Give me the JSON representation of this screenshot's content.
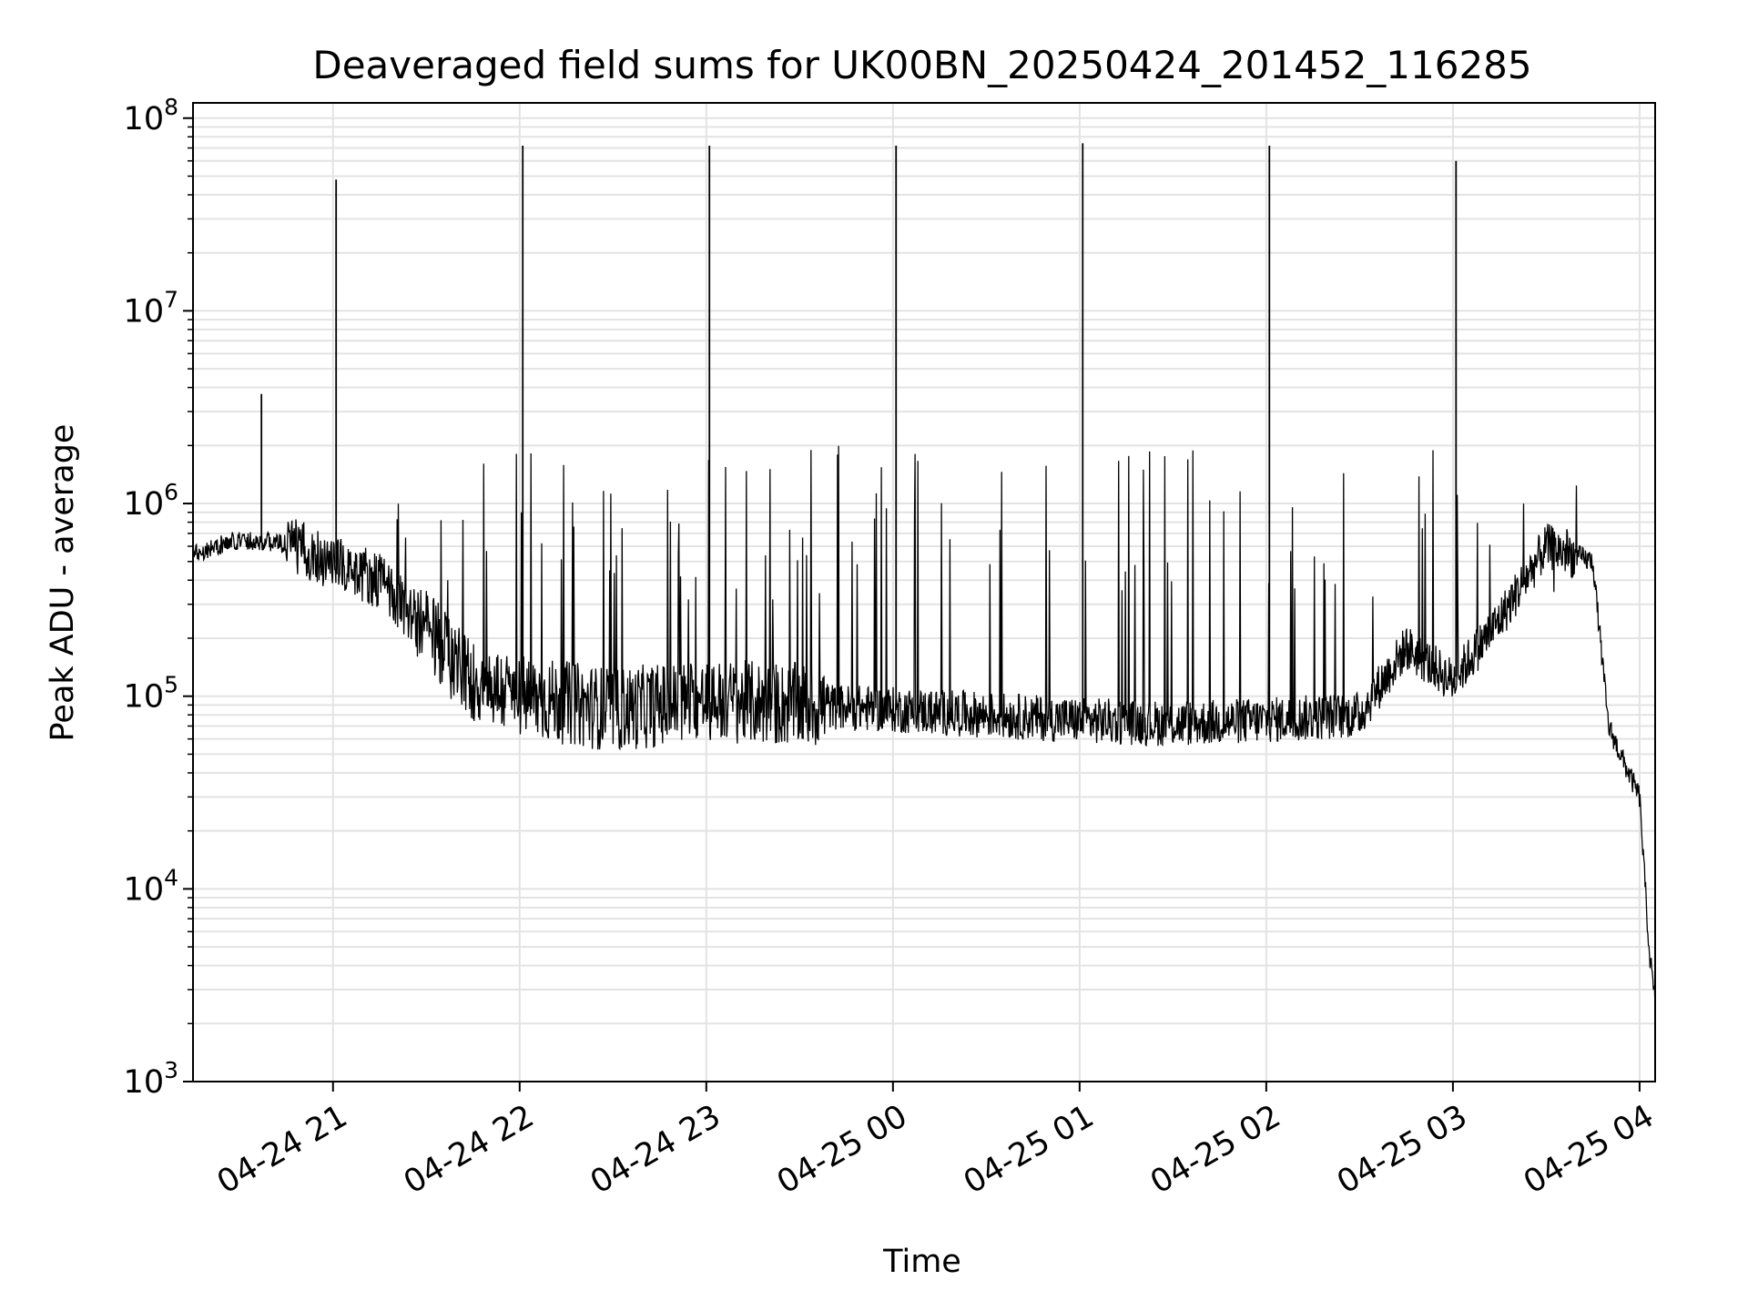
{
  "chart_data": {
    "type": "line",
    "title": "Deaveraged field sums for UK00BN_20250424_201452_116285",
    "xlabel": "Time",
    "ylabel": "Peak ADU - average",
    "yscale": "log",
    "ylim": [
      1000,
      120000000
    ],
    "xlim": [
      "2025-04-24 20:15",
      "2025-04-25 04:05"
    ],
    "x_ticks": [
      {
        "t": "2025-04-24 21:00",
        "label": "04-24 21"
      },
      {
        "t": "2025-04-24 22:00",
        "label": "04-24 22"
      },
      {
        "t": "2025-04-24 23:00",
        "label": "04-24 23"
      },
      {
        "t": "2025-04-25 00:00",
        "label": "04-25 00"
      },
      {
        "t": "2025-04-25 01:00",
        "label": "04-25 01"
      },
      {
        "t": "2025-04-25 02:00",
        "label": "04-25 02"
      },
      {
        "t": "2025-04-25 03:00",
        "label": "04-25 03"
      },
      {
        "t": "2025-04-25 04:00",
        "label": "04-25 04"
      }
    ],
    "y_ticks": [
      {
        "value": 1000,
        "base": "10",
        "exp": "3"
      },
      {
        "value": 10000,
        "base": "10",
        "exp": "4"
      },
      {
        "value": 100000,
        "base": "10",
        "exp": "5"
      },
      {
        "value": 1000000,
        "base": "10",
        "exp": "6"
      },
      {
        "value": 10000000,
        "base": "10",
        "exp": "7"
      },
      {
        "value": 100000000,
        "base": "10",
        "exp": "8"
      }
    ],
    "grid": true,
    "series": [
      {
        "color": "#000000",
        "x": [
          "2025-04-24 20:15",
          "2025-04-24 20:30",
          "2025-04-24 20:45",
          "2025-04-24 21:00",
          "2025-04-24 21:15",
          "2025-04-24 21:30",
          "2025-04-24 21:45",
          "2025-04-24 22:00",
          "2025-04-24 22:30",
          "2025-04-24 23:00",
          "2025-04-24 23:30",
          "2025-04-25 00:00",
          "2025-04-25 00:30",
          "2025-04-25 01:00",
          "2025-04-25 01:30",
          "2025-04-25 02:00",
          "2025-04-25 02:30",
          "2025-04-25 02:45",
          "2025-04-25 03:00",
          "2025-04-25 03:15",
          "2025-04-25 03:30",
          "2025-04-25 03:45",
          "2025-04-25 03:50",
          "2025-04-25 03:55",
          "2025-04-25 04:00",
          "2025-04-25 04:03",
          "2025-04-25 04:05"
        ],
        "y": [
          550000,
          650000,
          620000,
          500000,
          400000,
          220000,
          120000,
          100000,
          85000,
          95000,
          90000,
          85000,
          80000,
          75000,
          72000,
          75000,
          80000,
          180000,
          120000,
          250000,
          600000,
          500000,
          70000,
          45000,
          30000,
          5000,
          2500
        ]
      }
    ],
    "spikes": [
      {
        "t": "2025-04-24 20:37",
        "peak": 3700000
      },
      {
        "t": "2025-04-24 21:01",
        "peak": 48000000
      },
      {
        "t": "2025-04-24 22:01",
        "peak": 72000000
      },
      {
        "t": "2025-04-24 23:01",
        "peak": 72000000
      },
      {
        "t": "2025-04-25 00:01",
        "peak": 72000000
      },
      {
        "t": "2025-04-25 01:01",
        "peak": 74000000
      },
      {
        "t": "2025-04-25 02:01",
        "peak": 72000000
      },
      {
        "t": "2025-04-25 03:01",
        "peak": 60000000
      }
    ]
  }
}
